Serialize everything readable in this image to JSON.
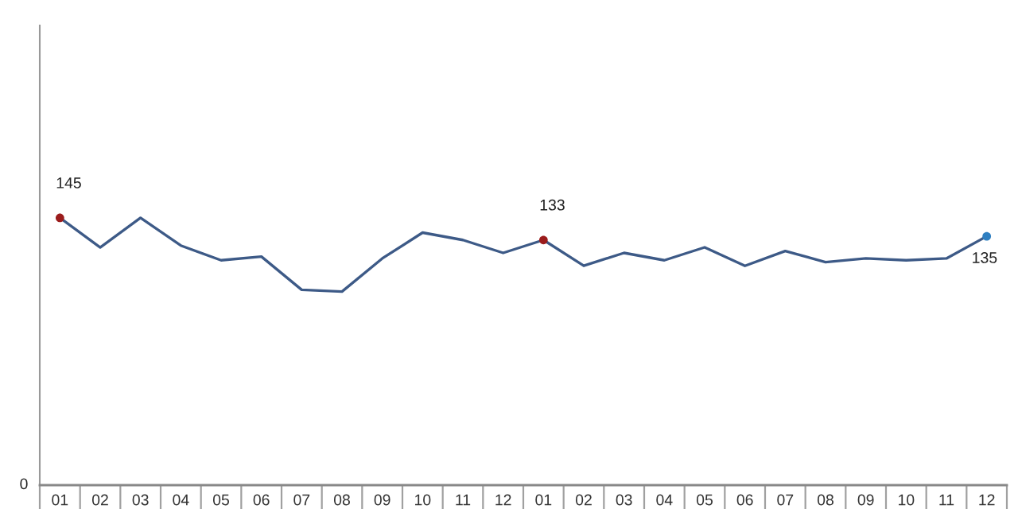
{
  "chart_data": {
    "type": "line",
    "grid": false,
    "categories": [
      "01",
      "02",
      "03",
      "04",
      "05",
      "06",
      "07",
      "08",
      "09",
      "10",
      "11",
      "12",
      "01",
      "02",
      "03",
      "04",
      "05",
      "06",
      "07",
      "08",
      "09",
      "10",
      "11",
      "12"
    ],
    "annotations": [
      "0"
    ],
    "series": [
      {
        "color": "#3d5a87",
        "values": [
          145,
          129,
          145,
          130,
          122,
          124,
          106,
          105,
          123,
          137,
          133,
          126,
          133,
          119,
          126,
          122,
          129,
          119,
          127,
          121,
          123,
          122,
          123,
          135
        ],
        "value_labels": [
          "145",
          null,
          null,
          null,
          null,
          null,
          null,
          null,
          null,
          null,
          null,
          null,
          "133",
          null,
          null,
          null,
          null,
          null,
          null,
          null,
          null,
          null,
          null,
          "135"
        ]
      },
      {
        "type": "scatter",
        "marker": "circle",
        "color": "#9b1c1c",
        "values": [
          145,
          null,
          null,
          null,
          null,
          null,
          null,
          null,
          null,
          null,
          null,
          null,
          133,
          null,
          null,
          null,
          null,
          null,
          null,
          null,
          null,
          null,
          null,
          null
        ]
      },
      {
        "type": "scatter",
        "marker": "circle",
        "color": "#2f7fc1",
        "values": [
          null,
          null,
          null,
          null,
          null,
          null,
          null,
          null,
          null,
          null,
          null,
          null,
          null,
          null,
          null,
          null,
          null,
          null,
          null,
          null,
          null,
          null,
          null,
          135
        ]
      }
    ]
  }
}
